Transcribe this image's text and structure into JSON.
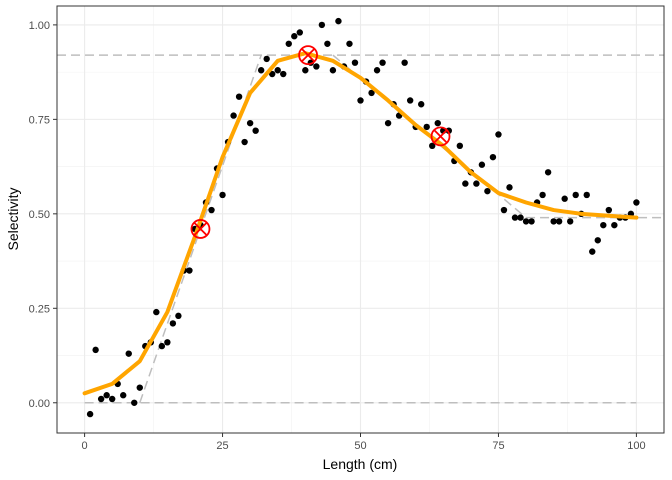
{
  "chart_data": {
    "type": "scatter",
    "title": "",
    "xlabel": "Length (cm)",
    "ylabel": "Selectivity",
    "xlim": [
      -5,
      105
    ],
    "ylim": [
      -0.08,
      1.05
    ],
    "x_ticks": [
      0,
      25,
      50,
      75,
      100
    ],
    "x_tick_labels": [
      "0",
      "25",
      "50",
      "75",
      "100"
    ],
    "y_ticks": [
      0,
      0.25,
      0.5,
      0.75,
      1.0
    ],
    "y_tick_labels": [
      "0.00",
      "0.25",
      "0.50",
      "0.75",
      "1.00"
    ],
    "grid": true,
    "points": [
      [
        1,
        -0.03
      ],
      [
        2,
        0.14
      ],
      [
        3,
        0.01
      ],
      [
        4,
        0.02
      ],
      [
        5,
        0.01
      ],
      [
        6,
        0.05
      ],
      [
        7,
        0.02
      ],
      [
        8,
        0.13
      ],
      [
        9,
        0.0
      ],
      [
        10,
        0.04
      ],
      [
        11,
        0.15
      ],
      [
        12,
        0.16
      ],
      [
        13,
        0.24
      ],
      [
        14,
        0.15
      ],
      [
        15,
        0.16
      ],
      [
        16,
        0.21
      ],
      [
        17,
        0.23
      ],
      [
        18,
        0.35
      ],
      [
        19,
        0.35
      ],
      [
        20,
        0.46
      ],
      [
        21,
        0.47
      ],
      [
        22,
        0.53
      ],
      [
        23,
        0.51
      ],
      [
        24,
        0.62
      ],
      [
        25,
        0.55
      ],
      [
        26,
        0.69
      ],
      [
        27,
        0.76
      ],
      [
        28,
        0.81
      ],
      [
        29,
        0.69
      ],
      [
        30,
        0.74
      ],
      [
        31,
        0.72
      ],
      [
        32,
        0.88
      ],
      [
        33,
        0.91
      ],
      [
        34,
        0.87
      ],
      [
        35,
        0.88
      ],
      [
        36,
        0.87
      ],
      [
        37,
        0.95
      ],
      [
        38,
        0.97
      ],
      [
        39,
        0.98
      ],
      [
        40,
        0.88
      ],
      [
        41,
        0.9
      ],
      [
        42,
        0.89
      ],
      [
        43,
        1.0
      ],
      [
        44,
        0.95
      ],
      [
        45,
        0.88
      ],
      [
        46,
        1.01
      ],
      [
        47,
        0.89
      ],
      [
        48,
        0.95
      ],
      [
        49,
        0.9
      ],
      [
        50,
        0.8
      ],
      [
        51,
        0.85
      ],
      [
        52,
        0.82
      ],
      [
        53,
        0.88
      ],
      [
        54,
        0.9
      ],
      [
        55,
        0.74
      ],
      [
        56,
        0.79
      ],
      [
        57,
        0.76
      ],
      [
        58,
        0.9
      ],
      [
        59,
        0.8
      ],
      [
        60,
        0.73
      ],
      [
        61,
        0.79
      ],
      [
        62,
        0.73
      ],
      [
        63,
        0.68
      ],
      [
        64,
        0.74
      ],
      [
        65,
        0.72
      ],
      [
        66,
        0.72
      ],
      [
        67,
        0.64
      ],
      [
        68,
        0.68
      ],
      [
        69,
        0.58
      ],
      [
        70,
        0.61
      ],
      [
        71,
        0.58
      ],
      [
        72,
        0.63
      ],
      [
        73,
        0.56
      ],
      [
        74,
        0.65
      ],
      [
        75,
        0.71
      ],
      [
        76,
        0.51
      ],
      [
        77,
        0.57
      ],
      [
        78,
        0.49
      ],
      [
        79,
        0.49
      ],
      [
        80,
        0.48
      ],
      [
        81,
        0.48
      ],
      [
        82,
        0.53
      ],
      [
        83,
        0.55
      ],
      [
        84,
        0.61
      ],
      [
        85,
        0.48
      ],
      [
        86,
        0.48
      ],
      [
        87,
        0.54
      ],
      [
        88,
        0.48
      ],
      [
        89,
        0.55
      ],
      [
        90,
        0.5
      ],
      [
        91,
        0.55
      ],
      [
        92,
        0.4
      ],
      [
        93,
        0.43
      ],
      [
        94,
        0.47
      ],
      [
        95,
        0.51
      ],
      [
        96,
        0.47
      ],
      [
        97,
        0.49
      ],
      [
        98,
        0.49
      ],
      [
        99,
        0.5
      ],
      [
        100,
        0.53
      ]
    ],
    "fitted_curve": {
      "color": "#FFA500",
      "x": [
        0,
        5,
        10,
        15,
        20,
        25,
        30,
        35,
        40,
        45,
        50,
        55,
        60,
        65,
        70,
        75,
        80,
        85,
        90,
        95,
        100
      ],
      "y": [
        0.025,
        0.05,
        0.11,
        0.24,
        0.44,
        0.65,
        0.82,
        0.905,
        0.925,
        0.905,
        0.86,
        0.8,
        0.735,
        0.68,
        0.61,
        0.555,
        0.53,
        0.51,
        0.5,
        0.495,
        0.49
      ]
    },
    "markers": {
      "color": "#FF0000",
      "points": [
        [
          21,
          0.46
        ],
        [
          40.5,
          0.92
        ],
        [
          64.5,
          0.705
        ]
      ]
    },
    "reference_lines": {
      "color": "#BEBEBE",
      "horizontal": [
        {
          "y": 0.0,
          "x_from": 0,
          "x_to": 100
        },
        {
          "y": 0.92,
          "x_from": -5,
          "x_to": 105
        },
        {
          "y": 0.49,
          "x_from": 80,
          "x_to": 105
        }
      ],
      "segments": [
        {
          "x1": 10,
          "y1": 0.0,
          "x2": 32,
          "y2": 0.92
        },
        {
          "x1": 45,
          "y1": 0.92,
          "x2": 80,
          "y2": 0.49
        }
      ]
    }
  }
}
